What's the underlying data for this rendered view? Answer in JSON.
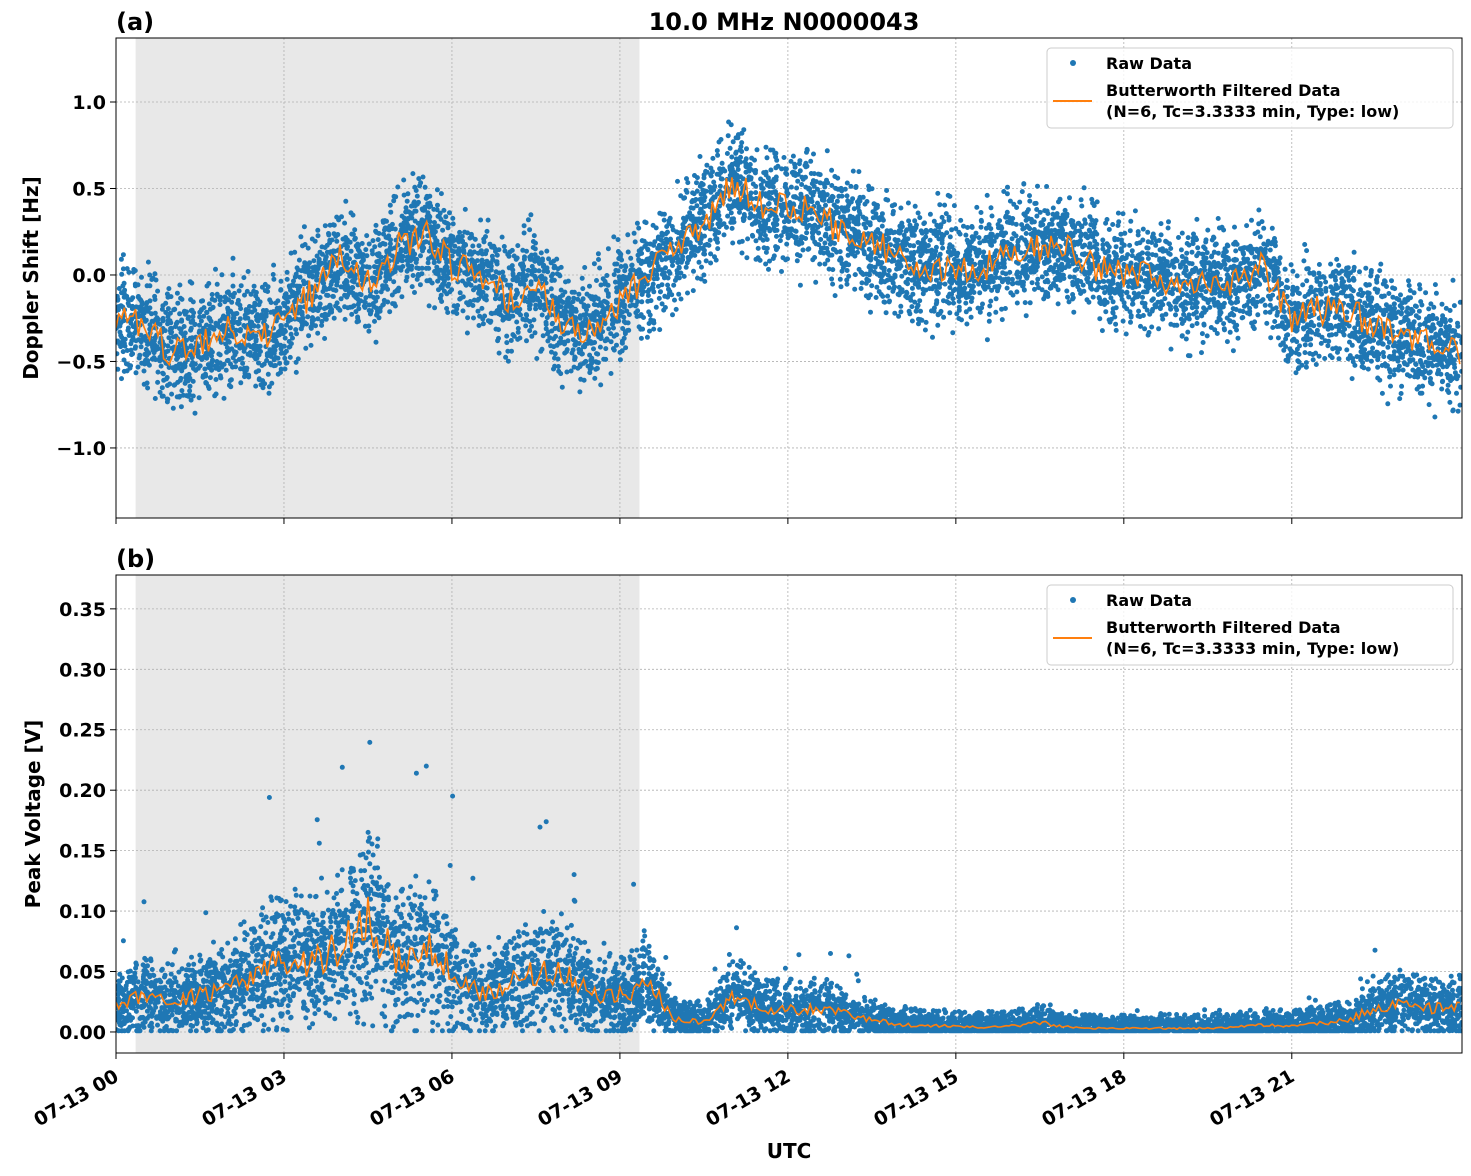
{
  "chart_data": {
    "type": "scatter",
    "title": "10.0 MHz N0000043",
    "xlabel": "UTC",
    "x_tick_labels": [
      "07-13 00",
      "07-13 03",
      "07-13 06",
      "07-13 09",
      "07-13 12",
      "07-13 15",
      "07-13 18",
      "07-13 21"
    ],
    "x_tick_hours": [
      0,
      3,
      6,
      9,
      12,
      15,
      18,
      21
    ],
    "xlim_hours": [
      0,
      24.04
    ],
    "x_hours": [
      0,
      0.5,
      1,
      1.5,
      2,
      2.5,
      3,
      3.5,
      4,
      4.5,
      5,
      5.5,
      6,
      6.5,
      7,
      7.5,
      8,
      8.5,
      9,
      9.5,
      10,
      10.5,
      11,
      11.5,
      12,
      12.5,
      13,
      13.5,
      14,
      14.5,
      15,
      15.5,
      16,
      16.5,
      17,
      17.5,
      18,
      18.5,
      19,
      19.5,
      20,
      20.5,
      21,
      21.5,
      22,
      22.5,
      23,
      23.5,
      24
    ],
    "shaded_interval": [
      "07-13 00:21",
      "07-13 09:21"
    ],
    "grid": true,
    "legend_placement": "upper-right",
    "legend": [
      "Raw Data",
      "Butterworth Filtered Data\n(N=6, Tc=3.3333 min, Type: low)"
    ],
    "colors": {
      "raw": "#1f77b4",
      "filtered": "#ff7f0e",
      "shade": "#e8e8e8"
    },
    "panels": [
      {
        "label": "(a)",
        "ylabel": "Doppler Shift [Hz]",
        "ylim": [
          -1.405,
          1.37
        ],
        "y_ticks": [
          -1.0,
          -0.5,
          0.0,
          0.5,
          1.0
        ],
        "y_tick_labels": [
          "−1.0",
          "−0.5",
          "0.0",
          "0.5",
          "1.0"
        ],
        "legend_raw": "Raw Data",
        "legend_filtered_1": "Butterworth Filtered Data",
        "legend_filtered_2": "(N=6, Tc=3.3333 min, Type: low)",
        "raw_spread": 0.28,
        "filtered": [
          -0.25,
          -0.3,
          -0.45,
          -0.4,
          -0.3,
          -0.35,
          -0.3,
          -0.1,
          0.1,
          -0.05,
          0.15,
          0.25,
          0.05,
          0.0,
          -0.15,
          -0.05,
          -0.3,
          -0.3,
          -0.15,
          0.0,
          0.15,
          0.3,
          0.55,
          0.4,
          0.4,
          0.35,
          0.25,
          0.2,
          0.1,
          0.05,
          0.05,
          0.05,
          0.15,
          0.15,
          0.15,
          0.05,
          0.0,
          0.0,
          -0.05,
          -0.05,
          -0.05,
          0.05,
          -0.25,
          -0.2,
          -0.2,
          -0.3,
          -0.35,
          -0.4,
          -0.45
        ]
      },
      {
        "label": "(b)",
        "ylabel": "Peak Voltage [V]",
        "ylim": [
          -0.0174,
          0.378
        ],
        "y_ticks": [
          0,
          0.05,
          0.1,
          0.15,
          0.2,
          0.25,
          0.3,
          0.35
        ],
        "y_tick_labels": [
          "0.00",
          "0.05",
          "0.10",
          "0.15",
          "0.20",
          "0.25",
          "0.30",
          "0.35"
        ],
        "legend_raw": "Raw Data",
        "legend_filtered_1": "Butterworth Filtered Data",
        "legend_filtered_2": "(N=6, Tc=3.3333 min, Type: low)",
        "raw_spread": 0.7,
        "filtered": [
          0.02,
          0.03,
          0.025,
          0.03,
          0.035,
          0.05,
          0.06,
          0.06,
          0.07,
          0.09,
          0.06,
          0.07,
          0.05,
          0.03,
          0.04,
          0.05,
          0.05,
          0.03,
          0.03,
          0.04,
          0.01,
          0.008,
          0.03,
          0.02,
          0.018,
          0.02,
          0.015,
          0.01,
          0.006,
          0.005,
          0.005,
          0.004,
          0.005,
          0.008,
          0.004,
          0.003,
          0.003,
          0.003,
          0.003,
          0.003,
          0.004,
          0.006,
          0.005,
          0.007,
          0.01,
          0.02,
          0.025,
          0.02,
          0.02
        ]
      }
    ]
  }
}
